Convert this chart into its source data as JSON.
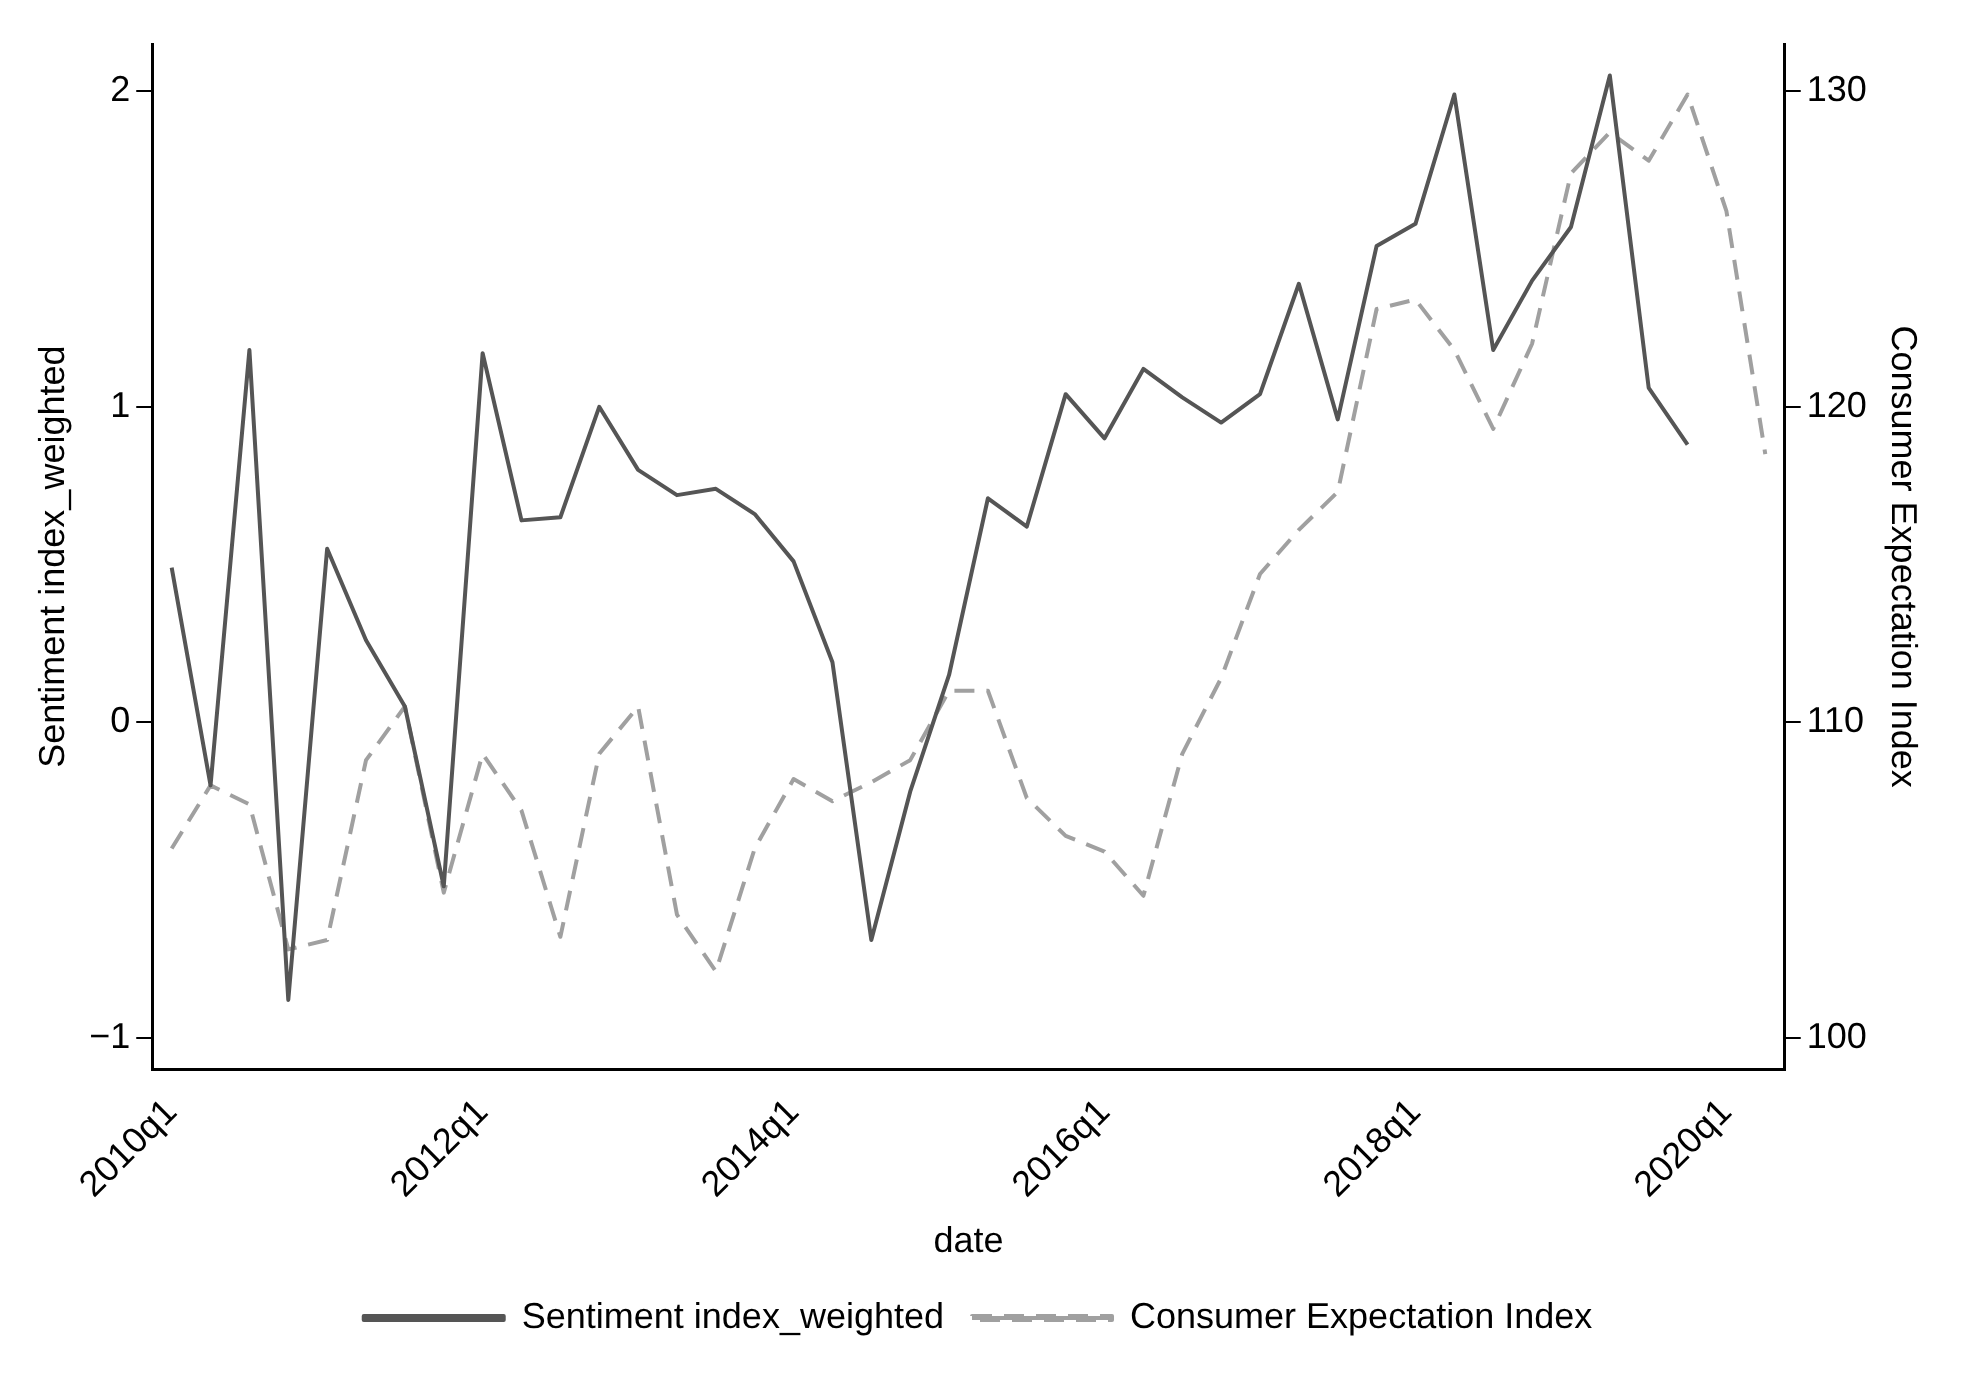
{
  "chart_data": {
    "type": "line",
    "xlabel": "date",
    "ylabel": "Sentiment index_weighted",
    "y2label": "Consumer Expectation Index",
    "categories": [
      "2010q1",
      null,
      null,
      null,
      null,
      null,
      null,
      null,
      "2012q1",
      null,
      null,
      null,
      null,
      null,
      null,
      null,
      "2014q1",
      null,
      null,
      null,
      null,
      null,
      null,
      null,
      "2016q1",
      null,
      null,
      null,
      null,
      null,
      null,
      null,
      "2018q1",
      null,
      null,
      null,
      null,
      null,
      null,
      null,
      "2020q1",
      null
    ],
    "series": [
      {
        "name": "Sentiment index_weighted",
        "color": "#555555",
        "line_style": "solid",
        "values": [
          0.49,
          -0.2,
          1.18,
          -0.88,
          0.55,
          0.26,
          0.05,
          -0.52,
          1.17,
          0.64,
          0.65,
          1.0,
          0.8,
          0.72,
          0.74,
          0.66,
          0.51,
          0.19,
          -0.69,
          -0.22,
          0.15,
          0.71,
          0.62,
          1.04,
          0.9,
          1.12,
          1.03,
          0.95,
          1.04,
          1.39,
          0.96,
          1.51,
          1.58,
          1.99,
          1.18,
          1.4,
          1.57,
          2.05,
          1.06,
          0.88,
          null,
          null
        ]
      },
      {
        "name": "Consumer Expectation Index",
        "color": "#a0a0a0",
        "line_style": "dashed",
        "axis": "y2",
        "values": [
          106,
          108,
          107.4,
          102.8,
          103.1,
          108.8,
          110.5,
          104.6,
          109,
          107.2,
          103.2,
          109,
          110.5,
          103.9,
          102.1,
          106,
          108.2,
          107.5,
          108.1,
          108.8,
          111,
          111,
          107.6,
          106.4,
          105.9,
          104.5,
          109,
          111.4,
          114.7,
          116.1,
          117.3,
          123.1,
          123.4,
          121.8,
          119.3,
          122,
          127.4,
          128.7,
          127.8,
          129.9,
          126.2,
          118.5
        ]
      }
    ],
    "ylim": [
      -1.1,
      2.15
    ],
    "yticks": [
      -1,
      0,
      1,
      2
    ],
    "y2lim": [
      99,
      131.5
    ],
    "y2ticks": [
      100,
      110,
      120,
      130
    ],
    "grid": false,
    "legend": "bottom",
    "marker": "none"
  }
}
